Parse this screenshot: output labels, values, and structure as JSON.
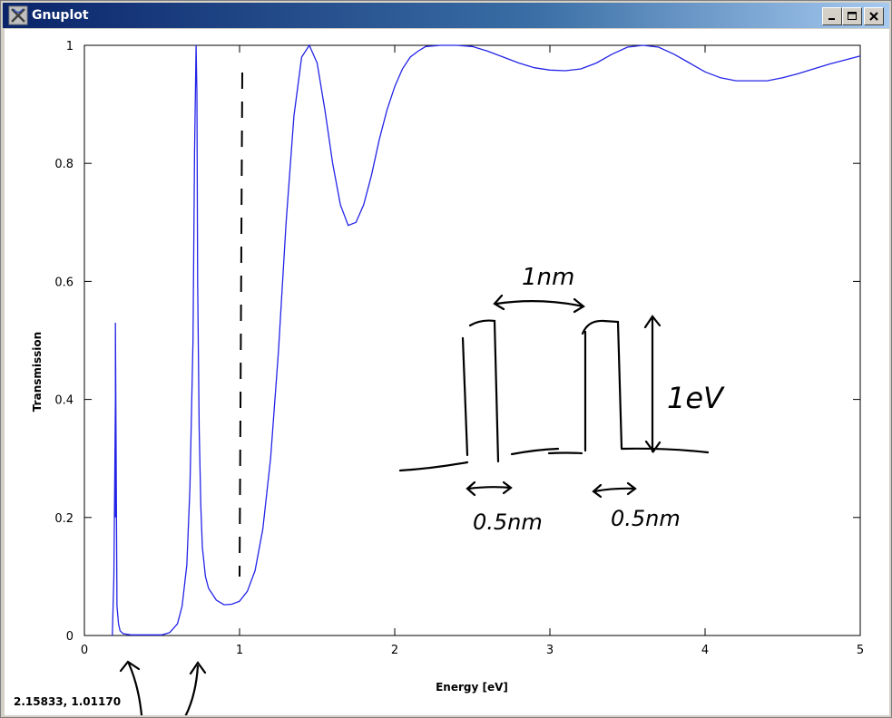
{
  "window": {
    "title": "Gnuplot",
    "buttons": {
      "minimize": "_",
      "maximize": "□",
      "close": "×"
    }
  },
  "status": {
    "coords": "2.15833,  1.01170"
  },
  "colors": {
    "curve": "#2323e8",
    "annotation": "#000000",
    "titlebar": "#0a246a"
  },
  "chart_data": {
    "type": "line",
    "xlabel": "Energy [eV]",
    "ylabel": "Transmission",
    "xlim": [
      0,
      5
    ],
    "ylim": [
      0,
      1
    ],
    "xticks": [
      "0",
      "1",
      "2",
      "3",
      "4",
      "5"
    ],
    "yticks": [
      "0",
      "0.2",
      "0.4",
      "0.6",
      "0.8",
      "1"
    ],
    "grid": false,
    "series": [
      {
        "x": [
          0.18,
          0.19,
          0.2,
          0.2,
          0.2,
          0.21,
          0.22,
          0.23,
          0.25,
          0.3,
          0.35,
          0.4,
          0.45,
          0.5,
          0.55,
          0.6,
          0.63,
          0.66,
          0.68,
          0.7,
          0.71,
          0.72,
          0.725,
          0.73,
          0.74,
          0.75,
          0.76,
          0.78,
          0.8,
          0.85,
          0.9,
          0.95,
          1.0,
          1.05,
          1.1,
          1.15,
          1.2,
          1.25,
          1.3,
          1.35,
          1.4,
          1.45,
          1.5,
          1.55,
          1.6,
          1.65,
          1.7,
          1.75,
          1.8,
          1.85,
          1.9,
          1.95,
          2.0,
          2.05,
          2.1,
          2.15,
          2.2,
          2.3,
          2.4,
          2.5,
          2.6,
          2.7,
          2.8,
          2.9,
          3.0,
          3.1,
          3.2,
          3.3,
          3.4,
          3.5,
          3.6,
          3.7,
          3.8,
          3.9,
          4.0,
          4.1,
          4.2,
          4.3,
          4.4,
          4.5,
          4.6,
          4.7,
          4.8,
          4.9,
          5.0
        ],
        "y": [
          0.0,
          0.1,
          0.4,
          0.2,
          0.53,
          0.05,
          0.02,
          0.008,
          0.003,
          0.001,
          0.001,
          0.001,
          0.001,
          0.001,
          0.005,
          0.02,
          0.05,
          0.12,
          0.25,
          0.5,
          0.82,
          1.0,
          0.92,
          0.6,
          0.35,
          0.22,
          0.15,
          0.1,
          0.08,
          0.06,
          0.052,
          0.053,
          0.058,
          0.075,
          0.11,
          0.18,
          0.3,
          0.48,
          0.7,
          0.88,
          0.98,
          1.0,
          0.97,
          0.89,
          0.8,
          0.73,
          0.695,
          0.7,
          0.73,
          0.78,
          0.84,
          0.89,
          0.93,
          0.96,
          0.98,
          0.99,
          0.998,
          1.0,
          1.0,
          0.998,
          0.99,
          0.98,
          0.97,
          0.962,
          0.958,
          0.957,
          0.96,
          0.97,
          0.985,
          0.997,
          1.0,
          0.997,
          0.985,
          0.97,
          0.955,
          0.945,
          0.94,
          0.94,
          0.94,
          0.945,
          0.952,
          0.96,
          0.968,
          0.975,
          0.982
        ]
      }
    ],
    "dashed_marker_x": 1.0
  },
  "annotations": {
    "width_top": "1nm",
    "height": "1eV",
    "width_left": "0.5nm",
    "width_right": "0.5nm"
  }
}
